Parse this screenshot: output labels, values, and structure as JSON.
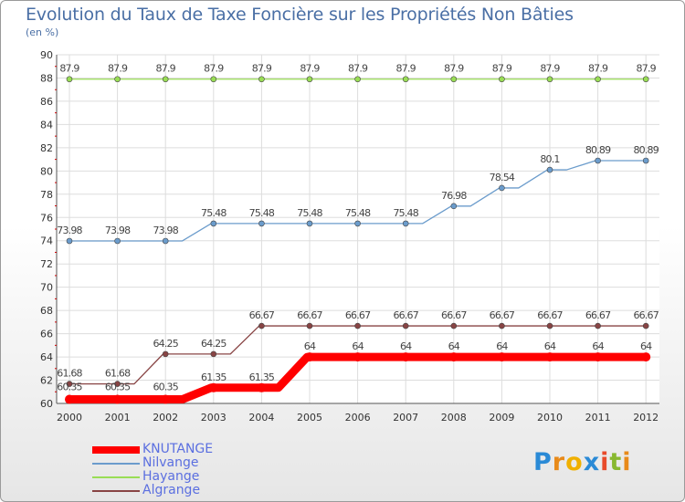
{
  "chart_data": {
    "type": "line",
    "title": "Evolution du Taux de Taxe Foncière sur les Propriétés Non Bâties",
    "subtitle": "(en %)",
    "x": [
      "2000",
      "2001",
      "2002",
      "2003",
      "2004",
      "2005",
      "2006",
      "2007",
      "2008",
      "2009",
      "2010",
      "2011",
      "2012"
    ],
    "ylim": [
      60,
      90
    ],
    "yticks": [
      60,
      62,
      64,
      66,
      68,
      70,
      72,
      74,
      76,
      78,
      80,
      82,
      84,
      86,
      88,
      90
    ],
    "grid": true,
    "legend_position": "bottom-left",
    "series": [
      {
        "name": "KNUTANGE",
        "color": "#ff0000",
        "values": [
          60.35,
          60.35,
          60.35,
          61.35,
          61.35,
          64,
          64,
          64,
          64,
          64,
          64,
          64,
          64
        ],
        "labels": [
          "60.35",
          "60.35",
          "60.35",
          "61.35",
          "61.35",
          "64",
          "64",
          "64",
          "64",
          "64",
          "64",
          "64",
          "64"
        ]
      },
      {
        "name": "Nilvange",
        "color": "#6b9ccc",
        "values": [
          73.98,
          73.98,
          73.98,
          75.48,
          75.48,
          75.48,
          75.48,
          75.48,
          76.98,
          78.54,
          80.1,
          80.89,
          80.89
        ],
        "labels": [
          "73.98",
          "73.98",
          "73.98",
          "75.48",
          "75.48",
          "75.48",
          "75.48",
          "75.48",
          "76.98",
          "78.54",
          "80.1",
          "80.89",
          "80.89"
        ]
      },
      {
        "name": "Hayange",
        "color": "#99dd55",
        "values": [
          87.9,
          87.9,
          87.9,
          87.9,
          87.9,
          87.9,
          87.9,
          87.9,
          87.9,
          87.9,
          87.9,
          87.9,
          87.9
        ],
        "labels": [
          "87.9",
          "87.9",
          "87.9",
          "87.9",
          "87.9",
          "87.9",
          "87.9",
          "87.9",
          "87.9",
          "87.9",
          "87.9",
          "87.9",
          "87.9"
        ]
      },
      {
        "name": "Algrange",
        "color": "#884444",
        "values": [
          61.68,
          61.68,
          64.25,
          64.25,
          66.67,
          66.67,
          66.67,
          66.67,
          66.67,
          66.67,
          66.67,
          66.67,
          66.67
        ],
        "labels": [
          "61.68",
          "61.68",
          "64.25",
          "64.25",
          "66.67",
          "66.67",
          "66.67",
          "66.67",
          "66.67",
          "66.67",
          "66.67",
          "66.67",
          "66.67"
        ]
      }
    ]
  },
  "logo": {
    "letters": [
      "P",
      "r",
      "o",
      "x",
      "i",
      "t",
      "i"
    ],
    "colors": [
      "#2a8ad6",
      "#e88a1a",
      "#f0b000",
      "#2a8ad6",
      "#e84a2a",
      "#88b830",
      "#e88a1a"
    ]
  }
}
